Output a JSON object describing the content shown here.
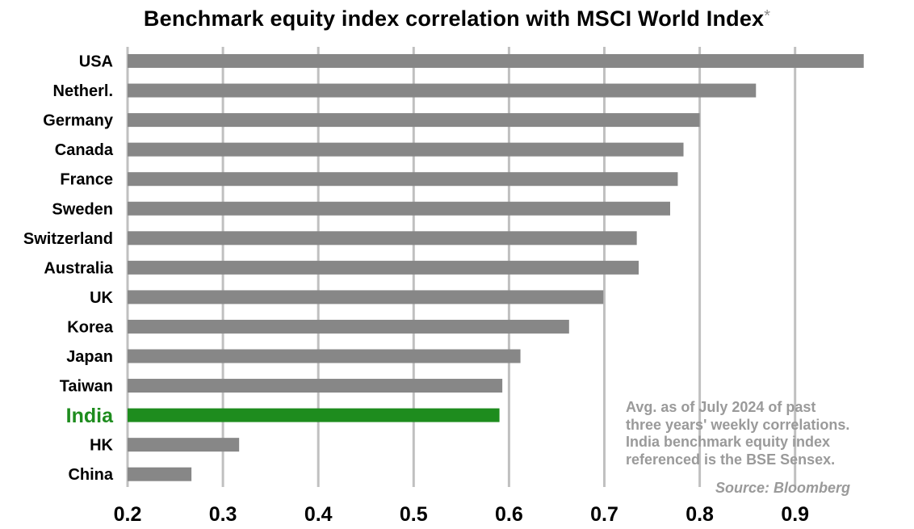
{
  "chart_data": {
    "type": "bar",
    "orientation": "horizontal",
    "title": "Benchmark equity index correlation with MSCI World Index",
    "title_mark": "*",
    "categories": [
      "USA",
      "Netherl.",
      "Germany",
      "Canada",
      "France",
      "Sweden",
      "Switzerland",
      "Australia",
      "UK",
      "Korea",
      "Japan",
      "Taiwan",
      "India",
      "HK",
      "China"
    ],
    "values": [
      0.972,
      0.859,
      0.8,
      0.783,
      0.777,
      0.769,
      0.734,
      0.736,
      0.699,
      0.663,
      0.612,
      0.593,
      0.59,
      0.317,
      0.267
    ],
    "highlight_category": "India",
    "xlim": [
      0.2,
      1.0
    ],
    "x_ticks": [
      "0.2",
      "0.3",
      "0.4",
      "0.5",
      "0.6",
      "0.7",
      "0.8",
      "0.9"
    ],
    "xlabel": "",
    "ylabel": "",
    "grid": "vertical",
    "colors": {
      "bar": "#878787",
      "highlight": "#1e8c1e",
      "grid": "#c0c0c0"
    }
  },
  "note_lines": [
    "Avg. as of July 2024 of past",
    "three years' weekly correlations.",
    "India benchmark equity index",
    "referenced is the BSE Sensex."
  ],
  "source": "Source: Bloomberg"
}
